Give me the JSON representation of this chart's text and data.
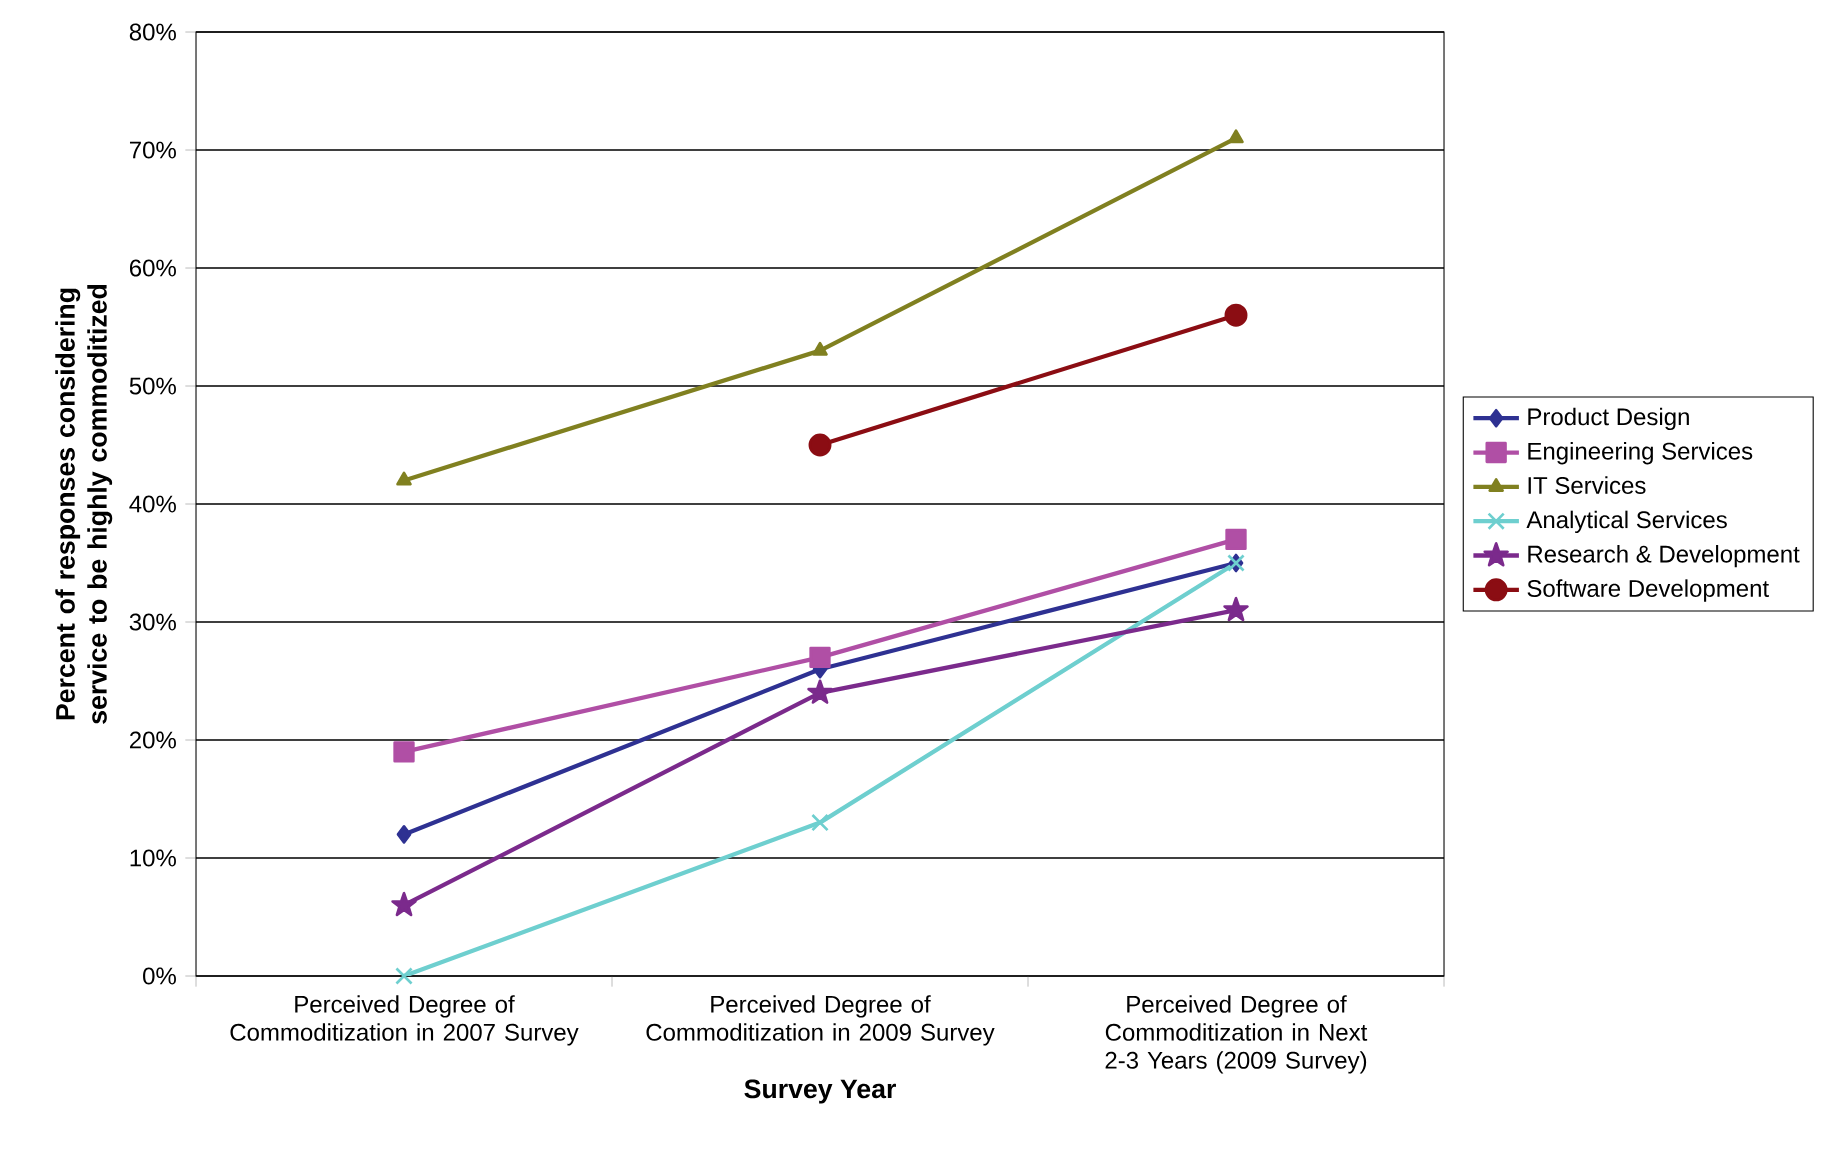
{
  "chart_data": {
    "type": "line",
    "xlabel": "Survey Year",
    "ylabel": "Percent of responses considering service to be highly commoditized",
    "categories": [
      "Perceived Degree of Commoditization in 2007 Survey",
      "Perceived Degree of Commoditization in 2009 Survey",
      "Perceived Degree of Commoditization in Next 2-3 Years (2009 Survey)"
    ],
    "series": [
      {
        "name": "Product Design",
        "color": "#2e3192",
        "marker": "diamond",
        "values": [
          12,
          26,
          35
        ]
      },
      {
        "name": "Engineering Services",
        "color": "#b04fa5",
        "marker": "square",
        "values": [
          19,
          27,
          37
        ]
      },
      {
        "name": "IT Services",
        "color": "#808020",
        "marker": "triangle",
        "values": [
          42,
          53,
          71
        ]
      },
      {
        "name": "Analytical Services",
        "color": "#6ecfcf",
        "marker": "cross",
        "values": [
          0,
          13,
          35
        ]
      },
      {
        "name": "Research & Development",
        "color": "#7b2a8c",
        "marker": "star",
        "values": [
          6,
          24,
          31
        ]
      },
      {
        "name": "Software Development",
        "color": "#8b0d13",
        "marker": "circle",
        "values": [
          null,
          45,
          56
        ]
      }
    ],
    "ylim": [
      0,
      80
    ],
    "yticks": [
      {
        "value": 0,
        "label": "0%"
      },
      {
        "value": 10,
        "label": "10%"
      },
      {
        "value": 20,
        "label": "20%"
      },
      {
        "value": 30,
        "label": "30%"
      },
      {
        "value": 40,
        "label": "40%"
      },
      {
        "value": 50,
        "label": "50%"
      },
      {
        "value": 60,
        "label": "60%"
      },
      {
        "value": 70,
        "label": "70%"
      },
      {
        "value": 80,
        "label": "80%"
      }
    ],
    "grid": "y",
    "legend": "right"
  }
}
